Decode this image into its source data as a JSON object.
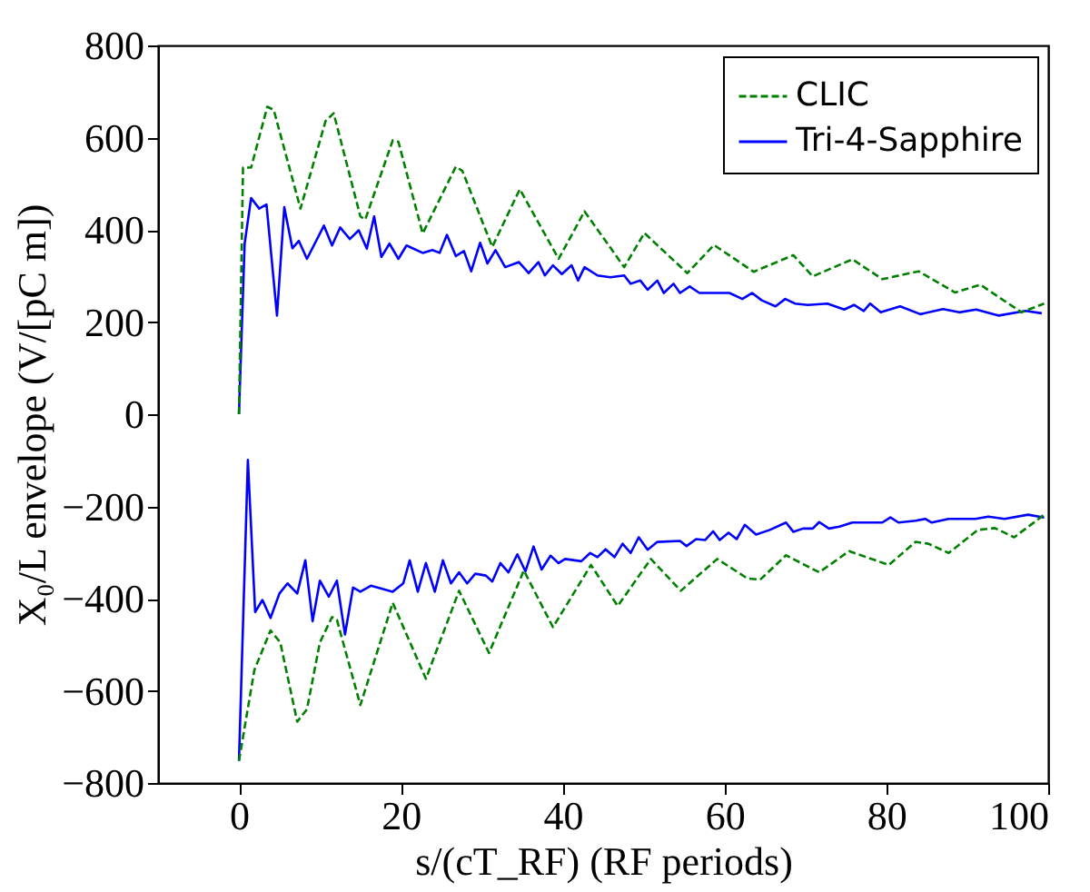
{
  "chart_data": {
    "type": "line",
    "xlabel": "s/(cT_RF) (RF periods)",
    "ylabel": "X₀/L envelope (V/[pC m])",
    "xlim": [
      -10,
      100
    ],
    "xticks": [
      0,
      20,
      40,
      60,
      80,
      100
    ],
    "ylim": [
      -800,
      800
    ],
    "yticks": [
      -800,
      -600,
      -400,
      -200,
      0,
      200,
      400,
      600,
      800
    ],
    "grid": false,
    "legend": "top right",
    "marker": "none",
    "series": [
      {
        "name": "CLIC",
        "color": "#008000",
        "line_style": "dashed",
        "x": [
          0,
          0.5,
          1.5,
          3.5,
          4.3,
          7.6,
          10.7,
          11.7,
          15,
          15.6,
          19,
          19.7,
          22.7,
          26.8,
          27.6,
          31.3,
          34.7,
          39.5,
          42.7,
          47.6,
          50.1,
          55.4,
          58.7,
          63.6,
          68.5,
          70.9,
          75.8,
          79.5,
          84,
          88.5,
          91.6,
          96.7,
          99.5
        ],
        "values": [
          0,
          535,
          535,
          667,
          660,
          446,
          636,
          653,
          429,
          422,
          594,
          591,
          392,
          537,
          528,
          363,
          488,
          337,
          440,
          319,
          393,
          306,
          367,
          309,
          345,
          299,
          336,
          293,
          310,
          264,
          281,
          221,
          240
        ]
      },
      {
        "color": "#008000",
        "line_style": "dashed",
        "x": [
          0,
          1.9,
          3.9,
          5.1,
          7.2,
          8.4,
          10,
          11.5,
          12.1,
          15,
          19,
          23.1,
          27.2,
          30.9,
          35.2,
          38.8,
          43.5,
          46.8,
          50.9,
          54.6,
          59.1,
          62.8,
          64.4,
          67.6,
          71.7,
          75.4,
          80.3,
          83.6,
          85.2,
          87.7,
          91.3,
          93.4,
          95.8,
          99.5
        ],
        "values": [
          -752,
          -555,
          -469,
          -495,
          -667,
          -640,
          -495,
          -440,
          -446,
          -631,
          -409,
          -574,
          -383,
          -518,
          -339,
          -462,
          -327,
          -416,
          -314,
          -383,
          -314,
          -356,
          -359,
          -306,
          -343,
          -297,
          -327,
          -277,
          -281,
          -301,
          -251,
          -247,
          -267,
          -218
        ]
      },
      {
        "name": "Tri-4-Sapphire",
        "color": "#0000ff",
        "line_style": "solid",
        "x": [
          0,
          0.7,
          1.5,
          2.5,
          3.4,
          4.7,
          5.6,
          6.6,
          7.4,
          8.4,
          10.5,
          11.5,
          12.5,
          13.7,
          14.8,
          15.8,
          16.7,
          17.6,
          18.6,
          19.7,
          20.7,
          22.7,
          23.9,
          24.8,
          25.7,
          26.8,
          27.8,
          28.7,
          29.8,
          30.7,
          31.7,
          32.9,
          34.6,
          35.8,
          37,
          37.8,
          38.8,
          39.9,
          41.1,
          41.9,
          42.7,
          44.3,
          45.9,
          47.6,
          48.4,
          49.6,
          50.5,
          51.7,
          52.5,
          53.7,
          54.5,
          55.7,
          56.9,
          60.6,
          62.2,
          63.4,
          64.6,
          66.3,
          67.5,
          68.7,
          70.3,
          72.7,
          74.8,
          76,
          77.2,
          78,
          79.3,
          81.7,
          84.2,
          87,
          89,
          91.1,
          93.9,
          97.2,
          99.2
        ],
        "values": [
          0,
          370,
          469,
          446,
          455,
          214,
          449,
          360,
          376,
          337,
          409,
          366,
          405,
          380,
          399,
          359,
          429,
          341,
          370,
          337,
          366,
          350,
          356,
          350,
          389,
          343,
          354,
          310,
          372,
          327,
          356,
          319,
          330,
          306,
          330,
          301,
          323,
          304,
          323,
          290,
          319,
          301,
          297,
          301,
          283,
          290,
          270,
          290,
          263,
          283,
          263,
          277,
          263,
          263,
          250,
          263,
          247,
          234,
          250,
          240,
          237,
          240,
          227,
          237,
          224,
          240,
          221,
          234,
          217,
          228,
          221,
          227,
          214,
          224,
          219
        ]
      },
      {
        "color": "#0000ff",
        "line_style": "solid",
        "x": [
          0,
          1.1,
          2,
          2.9,
          3.9,
          5,
          6,
          7.2,
          8.2,
          9.1,
          10,
          11.1,
          12.1,
          13.1,
          14.1,
          15,
          16.3,
          19,
          20.3,
          21.1,
          22.1,
          23.1,
          24.2,
          25.2,
          26.2,
          27.2,
          28.2,
          29.2,
          30.5,
          31.3,
          32.3,
          33.3,
          34.4,
          35.4,
          36.4,
          37.4,
          38.5,
          39.5,
          40.3,
          42.3,
          43.4,
          44.3,
          45.3,
          46.4,
          47.4,
          48.4,
          49.4,
          50.5,
          51.7,
          54.5,
          55.3,
          56.5,
          57.6,
          58.6,
          59.4,
          60.5,
          61.5,
          62.5,
          63.9,
          65.6,
          67.6,
          68.5,
          69.7,
          70.9,
          71.7,
          72.9,
          74.2,
          75.8,
          79.5,
          80.5,
          81.5,
          83.6,
          84.8,
          85.6,
          87.7,
          91,
          92.6,
          94.6,
          97.5,
          99.5
        ],
        "values": [
          -752,
          -99,
          -429,
          -403,
          -442,
          -389,
          -367,
          -389,
          -317,
          -449,
          -361,
          -396,
          -361,
          -478,
          -376,
          -385,
          -372,
          -385,
          -367,
          -317,
          -385,
          -323,
          -385,
          -317,
          -367,
          -343,
          -367,
          -346,
          -350,
          -363,
          -323,
          -343,
          -304,
          -341,
          -287,
          -337,
          -307,
          -323,
          -314,
          -319,
          -301,
          -310,
          -293,
          -310,
          -281,
          -301,
          -267,
          -294,
          -277,
          -275,
          -286,
          -271,
          -273,
          -254,
          -273,
          -257,
          -271,
          -240,
          -261,
          -251,
          -235,
          -255,
          -248,
          -248,
          -234,
          -248,
          -244,
          -235,
          -235,
          -224,
          -235,
          -231,
          -227,
          -235,
          -227,
          -227,
          -222,
          -227,
          -218,
          -224
        ]
      }
    ]
  }
}
